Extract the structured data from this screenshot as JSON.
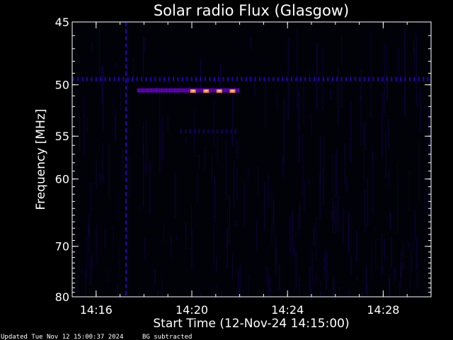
{
  "chart_data": {
    "type": "heatmap",
    "title": "Solar radio Flux (Glasgow)",
    "xlabel": "Start Time (12-Nov-24 14:15:00)",
    "ylabel": "Frequency [MHz]",
    "x_unit": "minutes after 14:15:00",
    "xlim": [
      0,
      15
    ],
    "ylim": [
      45,
      80
    ],
    "y_scale": "reciprocal",
    "x_ticks": [
      {
        "value": 1,
        "label": "14:16"
      },
      {
        "value": 5,
        "label": "14:20"
      },
      {
        "value": 9,
        "label": "14:24"
      },
      {
        "value": 13,
        "label": "14:28"
      }
    ],
    "y_ticks": [
      {
        "value": 45,
        "label": "45"
      },
      {
        "value": 50,
        "label": "50"
      },
      {
        "value": 55,
        "label": "55"
      },
      {
        "value": 60,
        "label": "60"
      },
      {
        "value": 70,
        "label": "70"
      },
      {
        "value": 80,
        "label": "80"
      }
    ],
    "colormap": [
      "#000000",
      "#1a0060",
      "#2a00c0",
      "#6a00d0",
      "#c040a0",
      "#ff8040",
      "#ffd080"
    ],
    "features": [
      {
        "kind": "constant-frequency band",
        "frequency": 49.5,
        "t_start": 0,
        "t_end": 15,
        "intensity": "low"
      },
      {
        "kind": "constant-frequency band",
        "frequency": 50.5,
        "t_start": 2.7,
        "t_end": 7.0,
        "intensity": "medium"
      },
      {
        "kind": "bright bursts",
        "frequency": 50.6,
        "times": [
          5.05,
          5.6,
          6.15,
          6.7
        ],
        "intensity": "high"
      },
      {
        "kind": "weak band",
        "frequency": 54.5,
        "t_start": 4.5,
        "t_end": 7.0,
        "intensity": "low"
      },
      {
        "kind": "vertical spike",
        "time": 2.25,
        "f_start": 45,
        "f_end": 80,
        "intensity": "low"
      }
    ]
  },
  "footer": {
    "updated": "Updated Tue Nov 12 15:00:37 2024",
    "note": "BG subtracted"
  },
  "colors": {
    "background": "#000000",
    "axis": "#ffffff"
  }
}
